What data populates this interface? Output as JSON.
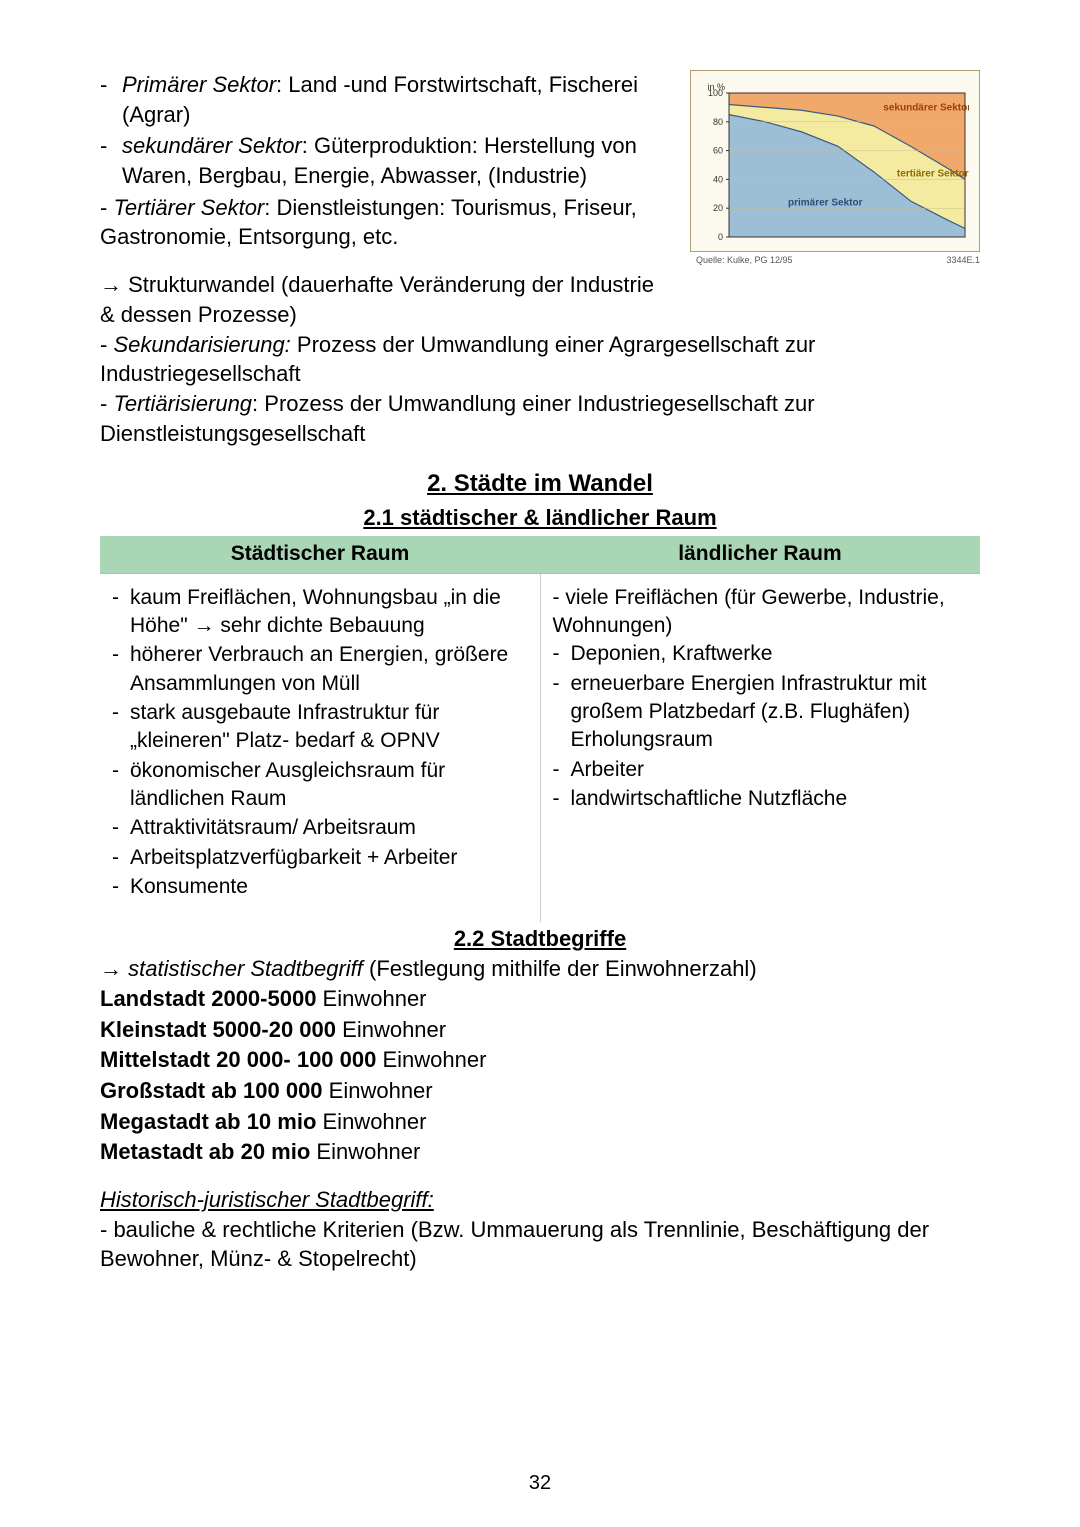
{
  "sectors": {
    "primary_label": "Primärer Sektor",
    "primary_text": ": Land -und Forstwirtschaft, Fischerei (Agrar)",
    "secondary_label": "sekundärer Sektor",
    "secondary_text": ": Güterproduktion: Herstellung von Waren, Bergbau, Energie, Abwasser, (Industrie)",
    "tertiary_label": "Tertiärer Sektor",
    "tertiary_text": ": Dienstleistungen: Tourismus, Friseur, Gastronomie, Entsorgung, etc."
  },
  "strukturwandel": {
    "arrow_line": "→ Strukturwandel (dauerhafte Veränderung der Industrie & dessen Prozesse)",
    "sekund_label": "Sekundarisierung:",
    "sekund_text": " Prozess der Umwandlung einer Agrargesellschaft zur Industriegesellschaft",
    "tert_label": "Tertiärisierung",
    "tert_text": ": Prozess der Umwandlung einer Industriegesellschaft zur Dienstleistungsgesellschaft"
  },
  "chart": {
    "type": "stacked-area",
    "y_unit": "in %",
    "y_ticks": [
      0,
      20,
      40,
      60,
      80,
      100
    ],
    "label_secondary": "sekundärer Sektor",
    "label_tertiary": "tertiärer Sektor",
    "label_primary": "primärer Sektor",
    "color_secondary": "#f0a96b",
    "color_tertiary": "#f4eaa0",
    "color_primary": "#9dbfd6",
    "line_color": "#3a5a85",
    "bg": "#fcf9ee",
    "grid_color": "#c8bd8c",
    "source_left": "Quelle: Kulke, PG 12/95",
    "source_right": "3344E.1",
    "label_fontsize": 9,
    "primary_top_points": [
      [
        0,
        85
      ],
      [
        40,
        80
      ],
      [
        80,
        73
      ],
      [
        120,
        63
      ],
      [
        160,
        45
      ],
      [
        200,
        25
      ],
      [
        240,
        12
      ],
      [
        260,
        6
      ]
    ],
    "tertiary_top_points": [
      [
        0,
        92
      ],
      [
        40,
        90
      ],
      [
        80,
        88
      ],
      [
        120,
        84
      ],
      [
        160,
        77
      ],
      [
        200,
        63
      ],
      [
        240,
        48
      ],
      [
        260,
        40
      ]
    ]
  },
  "section2": {
    "title": "2. Städte im Wandel",
    "sub1": "2.1 städtischer & ländlicher Raum",
    "header_left": "Städtischer Raum",
    "header_right": "ländlicher Raum",
    "left_items": [
      "kaum Freiflächen, Wohnungsbau „in die Höhe\" → sehr dichte Bebauung",
      "höherer Verbrauch an Energien, größere Ansammlungen von Müll",
      "stark ausgebaute Infrastruktur für „kleineren\" Platz- bedarf & OPNV",
      "ökonomischer Ausgleichsraum für ländlichen Raum",
      "Attraktivitätsraum/ Arbeitsraum",
      "Arbeitsplatzverfügbarkeit + Arbeiter",
      "Konsumente"
    ],
    "right_intro": "- viele Freiflächen (für Gewerbe, Industrie, Wohnungen)",
    "right_items": [
      "Deponien, Kraftwerke",
      "erneuerbare Energien Infrastruktur mit großem Platzbedarf (z.B. Flughäfen) Erholungsraum",
      "Arbeiter",
      "landwirtschaftliche Nutzfläche"
    ]
  },
  "section2_2": {
    "title": "2.2 Stadtbegriffe",
    "stat_label": "statistischer Stadtbegriff",
    "stat_text": " (Festlegung mithilfe der Einwohnerzahl)",
    "defs": [
      {
        "b": "Landstadt 2000-5000",
        "r": " Einwohner"
      },
      {
        "b": "Kleinstadt 5000-20 000",
        "r": " Einwohner"
      },
      {
        "b": "Mittelstadt 20 000- 100 000",
        "r": " Einwohner"
      },
      {
        "b": "Großstadt ab 100 000",
        "r": " Einwohner"
      },
      {
        "b": "Megastadt ab 10 mio",
        "r": " Einwohner"
      },
      {
        "b": "Metastadt ab 20 mio",
        "r": " Einwohner"
      }
    ],
    "hist_label": "Historisch-juristischer Stadtbegriff:",
    "hist_text": "- bauliche & rechtliche Kriterien (Bzw. Ummauerung als Trennlinie, Beschäftigung der Bewohner, Münz- & Stopelrecht)"
  },
  "page_number": "32"
}
